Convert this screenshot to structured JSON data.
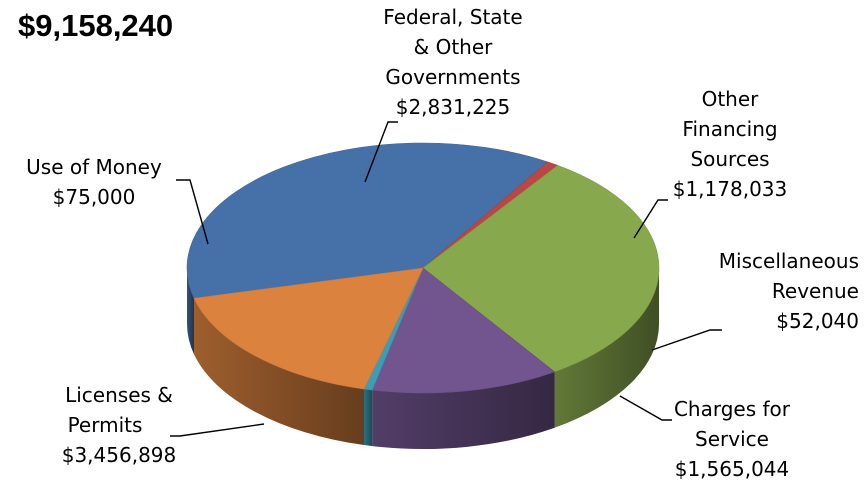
{
  "chart_data": {
    "type": "pie",
    "title": "$9,158,240",
    "slices": [
      {
        "name": "Licenses & Permits",
        "value": 3456898,
        "label": "$3,456,898",
        "color": "#4670A8"
      },
      {
        "name": "Use of Money",
        "value": 75000,
        "label": "$75,000",
        "color": "#B94743"
      },
      {
        "name": "Federal, State & Other Governments",
        "value": 2831225,
        "label": "$2,831,225",
        "color": "#88A84E"
      },
      {
        "name": "Other Financing Sources",
        "value": 1178033,
        "label": "$1,178,033",
        "color": "#72558F"
      },
      {
        "name": "Miscellaneous Revenue",
        "value": 52040,
        "label": "$52,040",
        "color": "#3C9DB5"
      },
      {
        "name": "Charges for Service",
        "value": 1565044,
        "label": "$1,565,044",
        "color": "#DB823E"
      }
    ]
  },
  "labels": {
    "licenses": {
      "line1": "Licenses &",
      "line2": "Permits",
      "value": "$3,456,898"
    },
    "money": {
      "line1": "Use of Money",
      "value": "$75,000"
    },
    "federal": {
      "line1": "Federal, State",
      "line2": "& Other",
      "line3": "Governments",
      "value": "$2,831,225"
    },
    "other": {
      "line1": "Other",
      "line2": "Financing",
      "line3": "Sources",
      "value": "$1,178,033"
    },
    "misc": {
      "line1": "Miscellaneous",
      "line2": "Revenue",
      "value": "$52,040"
    },
    "charges": {
      "line1": "Charges for",
      "line2": "Service",
      "value": "$1,565,044"
    }
  }
}
